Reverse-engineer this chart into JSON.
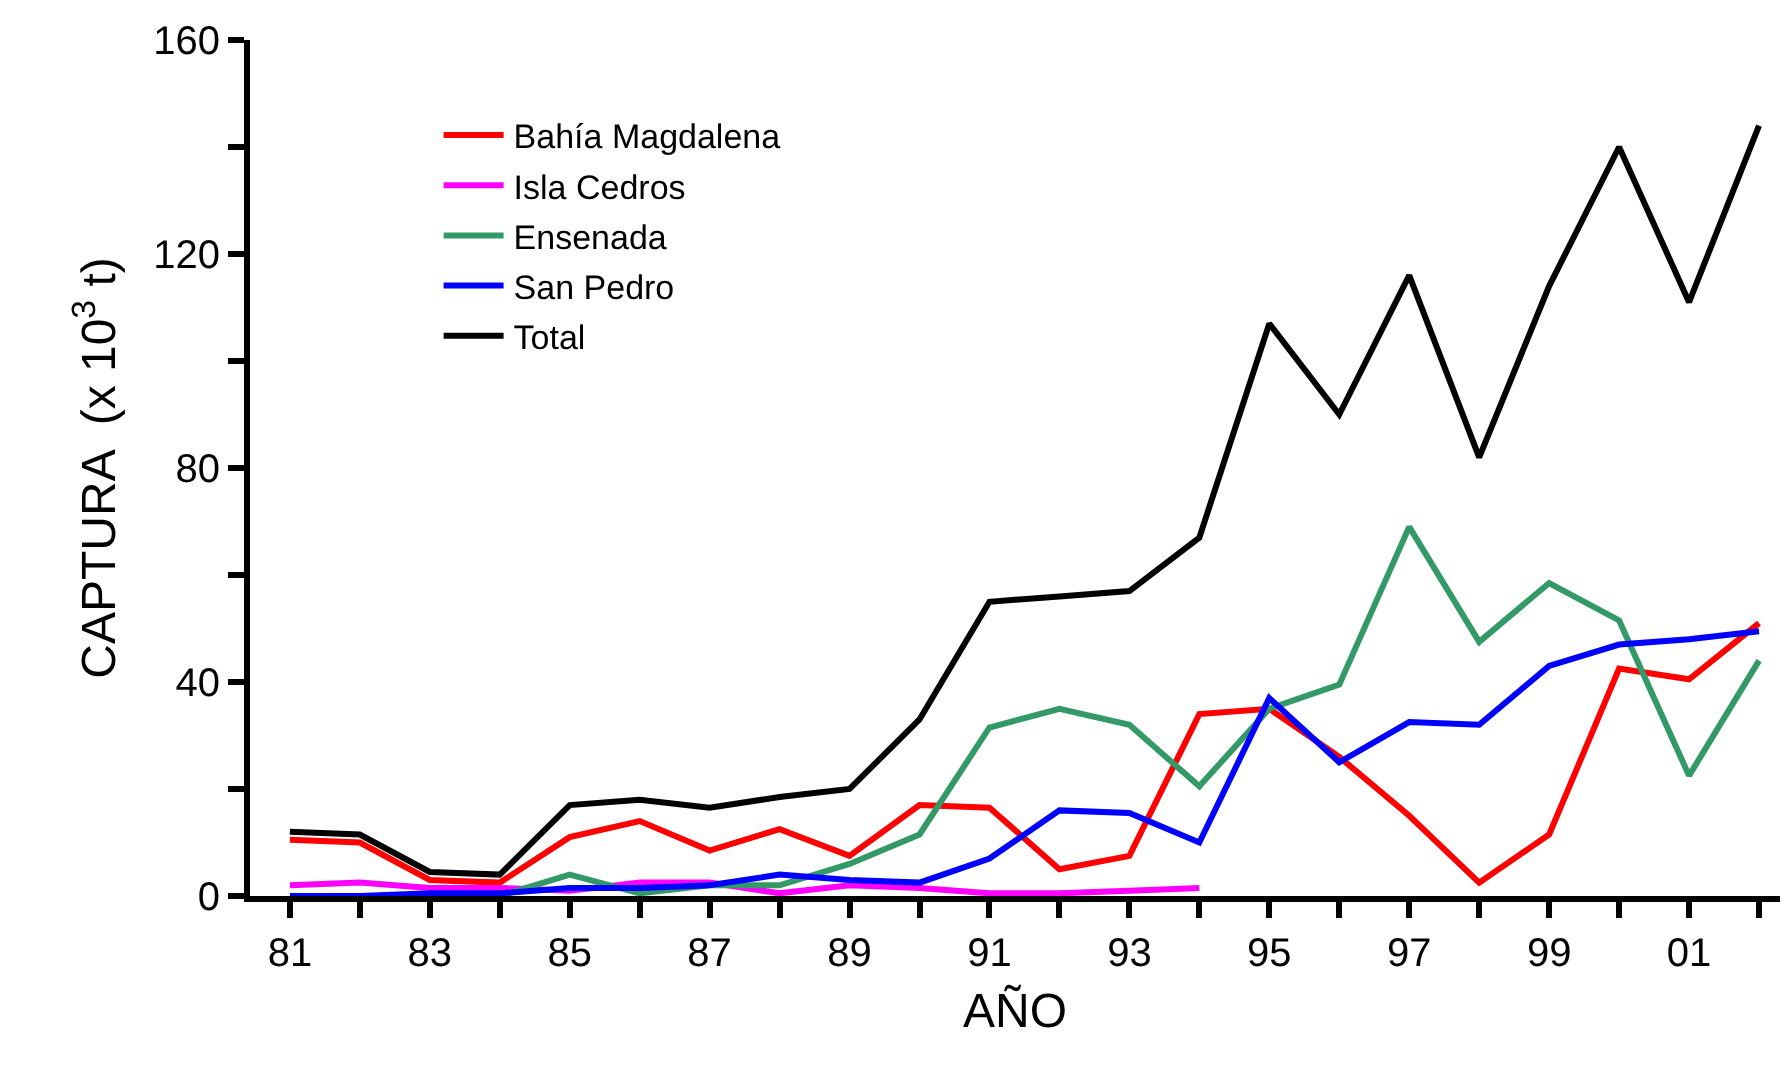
{
  "chart_data": {
    "type": "line",
    "xlabel": "AÑO",
    "ylabel": "CAPTURA  (x 10$^{3}$ t)",
    "x": [
      1981,
      1982,
      1983,
      1984,
      1985,
      1986,
      1987,
      1988,
      1989,
      1990,
      1991,
      1992,
      1993,
      1994,
      1995,
      1996,
      1997,
      1998,
      1999,
      2000,
      2001,
      2002
    ],
    "series": [
      {
        "name": "Bahía Magdalena",
        "color": "#ff0000",
        "values": [
          10.5,
          10,
          3,
          2.5,
          11,
          14,
          8.5,
          12.5,
          7.5,
          17,
          16.5,
          5,
          7.5,
          34,
          35,
          26,
          15,
          2.5,
          11.5,
          42.5,
          40.5,
          51
        ]
      },
      {
        "name": "Isla Cedros",
        "color": "#ff00ff",
        "values": [
          2,
          2.5,
          1.5,
          1.5,
          1,
          2.5,
          2.5,
          0.5,
          2,
          1.5,
          0.5,
          0.5,
          1,
          1.5,
          null,
          null,
          null,
          null,
          null,
          null,
          null,
          null
        ]
      },
      {
        "name": "Ensenada",
        "color": "#339966",
        "values": [
          null,
          null,
          0,
          0,
          4,
          0.5,
          2,
          2,
          6,
          11.5,
          31.5,
          35,
          32,
          20.5,
          35,
          39.5,
          69,
          47.5,
          58.5,
          51.5,
          22.5,
          44
        ]
      },
      {
        "name": "San Pedro",
        "color": "#0000ff",
        "values": [
          0,
          0,
          0.5,
          0.5,
          1.5,
          1.5,
          2,
          4,
          3,
          2.5,
          7,
          16,
          15.5,
          10,
          37,
          25,
          32.5,
          32,
          43,
          47,
          48,
          49.5
        ]
      },
      {
        "name": "Total",
        "color": "#000000",
        "values": [
          12,
          11.5,
          4.5,
          4,
          17,
          18,
          16.5,
          18.5,
          20,
          33,
          55,
          56,
          57,
          67,
          107,
          90,
          116,
          82,
          114,
          140,
          111,
          144
        ]
      }
    ],
    "xlim": [
      1980.43,
      2002.3
    ],
    "xticks": [
      {
        "value": 1981,
        "label": "81"
      },
      {
        "value": 1982,
        "label": null
      },
      {
        "value": 1983,
        "label": "83"
      },
      {
        "value": 1984,
        "label": null
      },
      {
        "value": 1985,
        "label": "85"
      },
      {
        "value": 1986,
        "label": null
      },
      {
        "value": 1987,
        "label": "87"
      },
      {
        "value": 1988,
        "label": null
      },
      {
        "value": 1989,
        "label": "89"
      },
      {
        "value": 1990,
        "label": null
      },
      {
        "value": 1991,
        "label": "91"
      },
      {
        "value": 1992,
        "label": null
      },
      {
        "value": 1993,
        "label": "93"
      },
      {
        "value": 1994,
        "label": null
      },
      {
        "value": 1995,
        "label": "95"
      },
      {
        "value": 1996,
        "label": null
      },
      {
        "value": 1997,
        "label": "97"
      },
      {
        "value": 1998,
        "label": null
      },
      {
        "value": 1999,
        "label": "99"
      },
      {
        "value": 2000,
        "label": null
      },
      {
        "value": 2001,
        "label": "01"
      },
      {
        "value": 2002,
        "label": null
      }
    ],
    "ylim": [
      0,
      160
    ],
    "yticks": [
      0,
      {
        "value": 20,
        "label": null
      },
      40,
      {
        "value": 60,
        "label": null
      },
      80,
      {
        "value": 100,
        "label": null
      },
      120,
      {
        "value": 140,
        "label": null
      },
      160
    ],
    "grid": false,
    "legend": "top left",
    "marker": "none",
    "line_style": "solid"
  }
}
